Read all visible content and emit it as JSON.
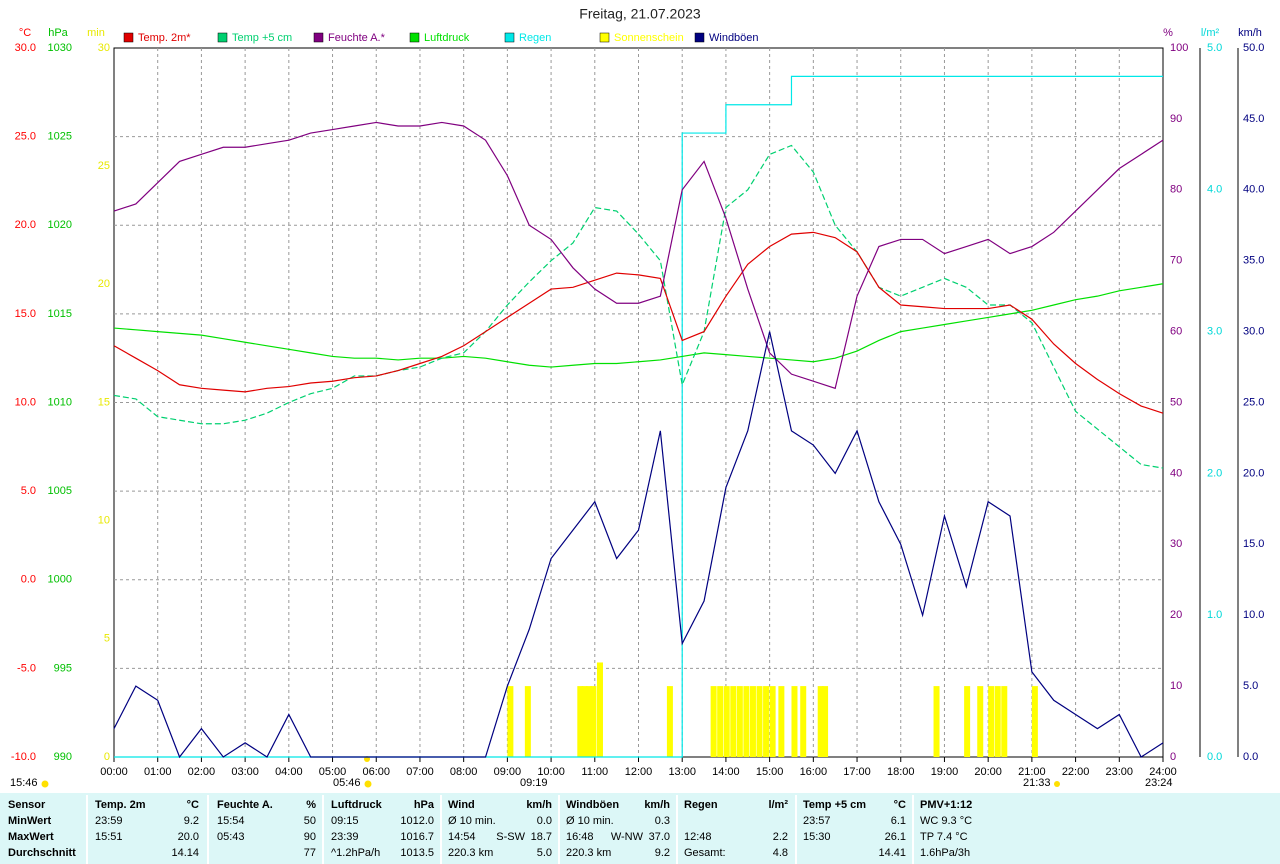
{
  "chart_data": {
    "type": "line",
    "title": "Freitag, 21.07.2023",
    "x": [
      0,
      0.5,
      1,
      1.5,
      2,
      2.5,
      3,
      3.5,
      4,
      4.5,
      5,
      5.5,
      6,
      6.5,
      7,
      7.5,
      8,
      8.5,
      9,
      9.5,
      10,
      10.5,
      11,
      11.5,
      12,
      12.5,
      13,
      13.5,
      14,
      14.5,
      15,
      15.5,
      16,
      16.5,
      17,
      17.5,
      18,
      18.5,
      19,
      19.5,
      20,
      20.5,
      21,
      21.5,
      22,
      22.5,
      23,
      23.5,
      24
    ],
    "xlim": [
      0,
      24
    ],
    "xticks": [
      {
        "value": 0,
        "label": "00:00"
      },
      {
        "value": 1,
        "label": "01:00"
      },
      {
        "value": 2,
        "label": "02:00"
      },
      {
        "value": 3,
        "label": "03:00"
      },
      {
        "value": 4,
        "label": "04:00"
      },
      {
        "value": 5,
        "label": "05:00"
      },
      {
        "value": 6,
        "label": "06:00"
      },
      {
        "value": 7,
        "label": "07:00"
      },
      {
        "value": 8,
        "label": "08:00"
      },
      {
        "value": 9,
        "label": "09:00"
      },
      {
        "value": 10,
        "label": "10:00"
      },
      {
        "value": 11,
        "label": "11:00"
      },
      {
        "value": 12,
        "label": "12:00"
      },
      {
        "value": 13,
        "label": "13:00"
      },
      {
        "value": 14,
        "label": "14:00"
      },
      {
        "value": 15,
        "label": "15:00"
      },
      {
        "value": 16,
        "label": "16:00"
      },
      {
        "value": 17,
        "label": "17:00"
      },
      {
        "value": 18,
        "label": "18:00"
      },
      {
        "value": 19,
        "label": "19:00"
      },
      {
        "value": 20,
        "label": "20:00"
      },
      {
        "value": 21,
        "label": "21:00"
      },
      {
        "value": 22,
        "label": "22:00"
      },
      {
        "value": 23,
        "label": "23:00"
      },
      {
        "value": 24,
        "label": "24:00"
      }
    ],
    "grid": true,
    "axes": [
      {
        "label": "°C",
        "color": "#ff0000",
        "lim": [
          -10,
          30
        ],
        "ticks": [
          {
            "value": 30,
            "label": "30.0"
          },
          {
            "value": 25,
            "label": "25.0"
          },
          {
            "value": 20,
            "label": "20.0"
          },
          {
            "value": 15,
            "label": "15.0"
          },
          {
            "value": 10,
            "label": "10.0"
          },
          {
            "value": 5,
            "label": "5.0"
          },
          {
            "value": 0,
            "label": "0.0"
          },
          {
            "value": -5,
            "label": "-5.0"
          },
          {
            "value": -10,
            "label": "-10.0"
          }
        ]
      },
      {
        "label": "hPa",
        "color": "#00c000",
        "lim": [
          990,
          1030
        ],
        "ticks": [
          1030,
          1025,
          1020,
          1015,
          1010,
          1005,
          1000,
          995,
          990
        ]
      },
      {
        "label": "min",
        "color": "#e8e800",
        "lim": [
          0,
          30
        ],
        "ticks": [
          30,
          25,
          20,
          15,
          10,
          5,
          0
        ]
      },
      {
        "label": "%",
        "color": "#800080",
        "lim": [
          0,
          100
        ],
        "ticks": [
          100,
          90,
          80,
          70,
          60,
          50,
          40,
          30,
          20,
          10,
          0
        ]
      },
      {
        "label": "l/m²",
        "color": "#00d8d8",
        "lim": [
          0,
          5
        ],
        "ticks": [
          {
            "value": 5,
            "label": "5.0"
          },
          {
            "value": 4,
            "label": "4.0"
          },
          {
            "value": 3,
            "label": "3.0"
          },
          {
            "value": 2,
            "label": "2.0"
          },
          {
            "value": 1,
            "label": "1.0"
          },
          {
            "value": 0,
            "label": "0.0"
          }
        ]
      },
      {
        "label": "km/h",
        "color": "#000080",
        "lim": [
          0,
          50
        ],
        "ticks": [
          {
            "value": 50,
            "label": "50.0"
          },
          {
            "value": 45,
            "label": "45.0"
          },
          {
            "value": 40,
            "label": "40.0"
          },
          {
            "value": 35,
            "label": "35.0"
          },
          {
            "value": 30,
            "label": "30.0"
          },
          {
            "value": 25,
            "label": "25.0"
          },
          {
            "value": 20,
            "label": "20.0"
          },
          {
            "value": 15,
            "label": "15.0"
          },
          {
            "value": 10,
            "label": "10.0"
          },
          {
            "value": 5,
            "label": "5.0"
          },
          {
            "value": 0,
            "label": "0.0"
          }
        ]
      }
    ],
    "series": [
      {
        "name": "Temp. 2m*",
        "color": "#e00000",
        "axis": 0,
        "values": [
          13.2,
          12.5,
          11.8,
          11,
          10.8,
          10.7,
          10.6,
          10.8,
          10.9,
          11.1,
          11.2,
          11.4,
          11.5,
          11.8,
          12.2,
          12.6,
          13.2,
          14,
          14.8,
          15.6,
          16.4,
          16.5,
          16.9,
          17.3,
          17.2,
          17,
          13.5,
          14,
          16,
          17.8,
          18.8,
          19.5,
          19.6,
          19.3,
          18.5,
          16.5,
          15.5,
          15.4,
          15.3,
          15.3,
          15.3,
          15.5,
          14.7,
          13.3,
          12.2,
          11.3,
          10.5,
          9.8,
          9.4
        ]
      },
      {
        "name": "Temp +5 cm",
        "color": "#00d070",
        "axis": 0,
        "dashed": true,
        "values": [
          10.4,
          10.2,
          9.2,
          9.0,
          8.8,
          8.8,
          9.0,
          9.4,
          10.0,
          10.5,
          10.8,
          11.5,
          11.5,
          11.8,
          12,
          12.5,
          12.8,
          14,
          15.5,
          16.8,
          18,
          19,
          21,
          20.8,
          19.5,
          18,
          11,
          14,
          21,
          22,
          24,
          24.5,
          23,
          20,
          18.5,
          16.5,
          16,
          16.5,
          17,
          16.5,
          15.5,
          15.5,
          14.5,
          12,
          9.5,
          8.5,
          7.5,
          6.5,
          6.3
        ]
      },
      {
        "name": "Feuchte A.*",
        "color": "#800080",
        "axis": 3,
        "values": [
          77,
          78,
          81,
          84,
          85,
          86,
          86,
          86.5,
          87,
          88,
          88.5,
          89,
          89.5,
          89,
          89,
          89.5,
          89,
          87,
          82,
          75,
          73,
          69,
          66,
          64,
          64,
          65,
          80,
          84,
          76,
          66,
          57,
          54,
          53,
          52,
          65,
          72,
          73,
          73,
          71,
          72,
          73,
          71,
          72,
          74,
          77,
          80,
          83,
          85,
          87
        ]
      },
      {
        "name": "Luftdruck",
        "color": "#00e000",
        "axis": 1,
        "values": [
          1014.2,
          1014.1,
          1014.0,
          1013.9,
          1013.8,
          1013.6,
          1013.4,
          1013.2,
          1013.0,
          1012.8,
          1012.6,
          1012.5,
          1012.5,
          1012.4,
          1012.5,
          1012.5,
          1012.6,
          1012.5,
          1012.3,
          1012.1,
          1012.0,
          1012.1,
          1012.2,
          1012.2,
          1012.3,
          1012.4,
          1012.6,
          1012.8,
          1012.7,
          1012.6,
          1012.5,
          1012.4,
          1012.3,
          1012.5,
          1012.9,
          1013.5,
          1014.0,
          1014.2,
          1014.4,
          1014.6,
          1014.8,
          1015.0,
          1015.2,
          1015.5,
          1015.8,
          1016.0,
          1016.3,
          1016.5,
          1016.7
        ]
      },
      {
        "name": "Regen",
        "color": "#00e8e8",
        "axis": 4,
        "step": true,
        "values": [
          0,
          0,
          0,
          0,
          0,
          0,
          0,
          0,
          0,
          0,
          0,
          0,
          0,
          0,
          0,
          0,
          0,
          0,
          0,
          0,
          0,
          0,
          0,
          0,
          0,
          0,
          4.4,
          4.4,
          4.6,
          4.6,
          4.6,
          4.8,
          4.8,
          4.8,
          4.8,
          4.8,
          4.8,
          4.8,
          4.8,
          4.8,
          4.8,
          4.8,
          4.8,
          4.8,
          4.8,
          4.8,
          4.8,
          4.8,
          4.8
        ]
      },
      {
        "name": "Sonnenschein",
        "color": "#ffff00",
        "axis": 2,
        "bars": true,
        "x": [
          9.0,
          9.4,
          10.6,
          10.7,
          10.8,
          10.9,
          11.05,
          12.65,
          13.65,
          13.8,
          13.95,
          14.1,
          14.25,
          14.4,
          14.55,
          14.7,
          14.85,
          15.0,
          15.2,
          15.5,
          15.7,
          16.1,
          16.2,
          18.75,
          19.45,
          19.75,
          20.0,
          20.15,
          20.3,
          21.0
        ],
        "values": [
          3,
          3,
          3,
          3,
          3,
          3,
          4,
          3,
          3,
          3,
          3,
          3,
          3,
          3,
          3,
          3,
          3,
          3,
          3,
          3,
          3,
          3,
          3,
          3,
          3,
          3,
          3,
          3,
          3,
          3
        ]
      },
      {
        "name": "Windböen",
        "color": "#000080",
        "axis": 5,
        "values": [
          2,
          5,
          4,
          0,
          2,
          0,
          1,
          0,
          3,
          0,
          0,
          0,
          0,
          0,
          0,
          0,
          0,
          0,
          5,
          9,
          14,
          16,
          18,
          14,
          16,
          23,
          8,
          11,
          19,
          23,
          30,
          23,
          22,
          20,
          23,
          18,
          15,
          10,
          17,
          12,
          18,
          17,
          6,
          4,
          3,
          2,
          3,
          0,
          1
        ]
      }
    ],
    "annotations": [
      "15:46",
      "05:46",
      "09:19",
      "21:33",
      "23:24"
    ]
  },
  "table": {
    "header": [
      {
        "left": "Sensor"
      },
      {
        "left": "Temp. 2m",
        "right": "°C"
      },
      {
        "left": "Feuchte A.",
        "right": "%"
      },
      {
        "left": "Luftdruck",
        "right": "hPa"
      },
      {
        "left": "Wind",
        "right": "km/h"
      },
      {
        "left": "Windböen",
        "right": "km/h"
      },
      {
        "left": "Regen",
        "right": "l/m²"
      },
      {
        "left": "Temp +5 cm",
        "right": "°C"
      },
      {
        "left": "PMV+1:12"
      }
    ],
    "rows": [
      [
        {
          "left": "MinWert"
        },
        {
          "left": "23:59",
          "right": "9.2"
        },
        {
          "left": "15:54",
          "right": "50"
        },
        {
          "left": "09:15",
          "right": "1012.0"
        },
        {
          "left": "Ø 10 min.",
          "right": "0.0"
        },
        {
          "left": "Ø 10 min.",
          "right": "0.3"
        },
        {},
        {
          "left": "23:57",
          "right": "6.1"
        },
        {
          "left": "WC 9.3 °C"
        }
      ],
      [
        {
          "left": "MaxWert"
        },
        {
          "left": "15:51",
          "right": "20.0"
        },
        {
          "left": "05:43",
          "right": "90"
        },
        {
          "left": "23:39",
          "right": "1016.7"
        },
        {
          "left": "14:54",
          "mid": "S-SW",
          "right": "18.7"
        },
        {
          "left": "16:48",
          "mid": "W-NW",
          "right": "37.0"
        },
        {
          "left": "12:48",
          "right": "2.2"
        },
        {
          "left": "15:30",
          "right": "26.1"
        },
        {
          "left": "TP 7.4 °C"
        }
      ],
      [
        {
          "left": "Durchschnitt"
        },
        {
          "right": "14.14"
        },
        {
          "right": "77"
        },
        {
          "left": "^1.2hPa/h",
          "right": "1013.5"
        },
        {
          "left": "220.3 km",
          "right": "5.0"
        },
        {
          "left": "220.3 km",
          "right": "9.2"
        },
        {
          "left": "Gesamt:",
          "right": "4.8"
        },
        {
          "right": "14.41"
        },
        {
          "left": "1.6hPa/3h"
        }
      ]
    ]
  }
}
